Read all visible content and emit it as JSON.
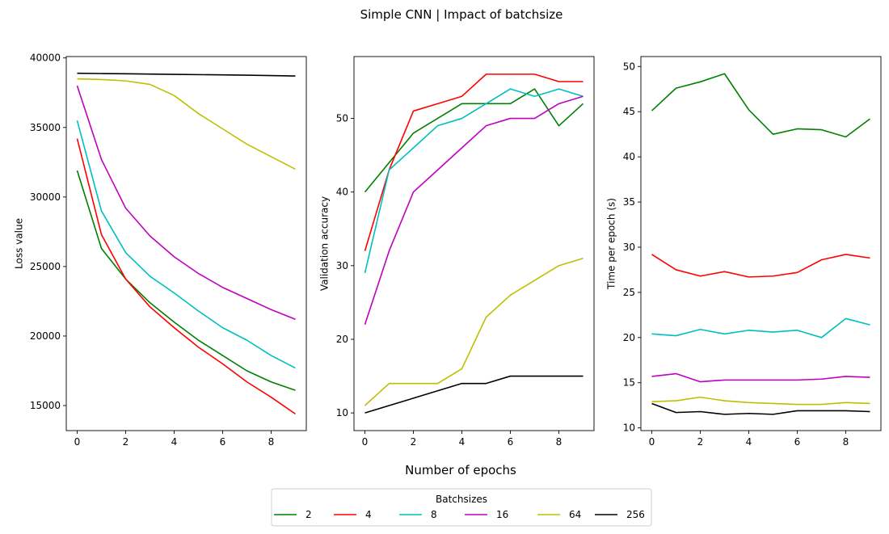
{
  "figure": {
    "suptitle": "Simple CNN | Impact of batchsize",
    "supxlabel": "Number of epochs"
  },
  "legend": {
    "title": "Batchsizes",
    "placement": "bottom-center",
    "columns": 6
  },
  "chart_data": [
    {
      "type": "line",
      "title": "",
      "xlabel": "",
      "ylabel": "Loss value",
      "xlim": [
        -0.45,
        9.45
      ],
      "ylim": [
        13200,
        40100
      ],
      "xticks": [
        0,
        2,
        4,
        6,
        8
      ],
      "yticks": [
        15000,
        20000,
        25000,
        30000,
        35000,
        40000
      ],
      "x": [
        0,
        1,
        2,
        3,
        4,
        5,
        6,
        7,
        8,
        9
      ],
      "series": [
        {
          "name": "2",
          "color": "#008000",
          "values": [
            31900,
            26300,
            24100,
            22400,
            21000,
            19700,
            18600,
            17500,
            16700,
            16100
          ]
        },
        {
          "name": "4",
          "color": "#ff0000",
          "values": [
            34200,
            27300,
            24100,
            22100,
            20600,
            19200,
            18000,
            16700,
            15600,
            14400
          ]
        },
        {
          "name": "8",
          "color": "#00bfbf",
          "values": [
            35500,
            29000,
            26000,
            24300,
            23100,
            21800,
            20600,
            19700,
            18600,
            17700
          ]
        },
        {
          "name": "16",
          "color": "#bf00bf",
          "values": [
            38000,
            32700,
            29200,
            27200,
            25700,
            24500,
            23500,
            22700,
            21900,
            21200
          ]
        },
        {
          "name": "64",
          "color": "#bfbf00",
          "values": [
            38500,
            38450,
            38350,
            38100,
            37300,
            36000,
            34900,
            33800,
            32900,
            32000
          ]
        },
        {
          "name": "256",
          "color": "#000000",
          "values": [
            38900,
            38880,
            38860,
            38840,
            38820,
            38800,
            38780,
            38760,
            38730,
            38700
          ]
        }
      ]
    },
    {
      "type": "line",
      "title": "",
      "xlabel": "",
      "ylabel": "Validation accuracy",
      "xlim": [
        -0.45,
        9.45
      ],
      "ylim": [
        7.6,
        58.4
      ],
      "xticks": [
        0,
        2,
        4,
        6,
        8
      ],
      "yticks": [
        10,
        20,
        30,
        40,
        50
      ],
      "x": [
        0,
        1,
        2,
        3,
        4,
        5,
        6,
        7,
        8,
        9
      ],
      "series": [
        {
          "name": "2",
          "color": "#008000",
          "values": [
            40,
            44,
            48,
            50,
            52,
            52,
            52,
            54,
            49,
            52
          ]
        },
        {
          "name": "4",
          "color": "#ff0000",
          "values": [
            32,
            43,
            51,
            52,
            53,
            56,
            56,
            56,
            55,
            55
          ]
        },
        {
          "name": "8",
          "color": "#00bfbf",
          "values": [
            29,
            43,
            46,
            49,
            50,
            52,
            54,
            53,
            54,
            53
          ]
        },
        {
          "name": "16",
          "color": "#bf00bf",
          "values": [
            22,
            32,
            40,
            43,
            46,
            49,
            50,
            50,
            52,
            53
          ]
        },
        {
          "name": "64",
          "color": "#bfbf00",
          "values": [
            11,
            14,
            14,
            14,
            16,
            23,
            26,
            28,
            30,
            31
          ]
        },
        {
          "name": "256",
          "color": "#000000",
          "values": [
            10,
            11,
            12,
            13,
            14,
            14,
            15,
            15,
            15,
            15
          ]
        }
      ]
    },
    {
      "type": "line",
      "title": "",
      "xlabel": "",
      "ylabel": "Time per epoch (s)",
      "xlim": [
        -0.45,
        9.45
      ],
      "ylim": [
        9.7,
        51.1
      ],
      "xticks": [
        0,
        2,
        4,
        6,
        8
      ],
      "yticks": [
        10,
        15,
        20,
        25,
        30,
        35,
        40,
        45,
        50
      ],
      "x": [
        0,
        1,
        2,
        3,
        4,
        5,
        6,
        7,
        8,
        9
      ],
      "series": [
        {
          "name": "2",
          "color": "#008000",
          "values": [
            45.1,
            47.6,
            48.3,
            49.2,
            45.2,
            42.5,
            43.1,
            43.0,
            42.2,
            44.2
          ]
        },
        {
          "name": "4",
          "color": "#ff0000",
          "values": [
            29.2,
            27.5,
            26.8,
            27.3,
            26.7,
            26.8,
            27.2,
            28.6,
            29.2,
            28.8
          ]
        },
        {
          "name": "8",
          "color": "#00bfbf",
          "values": [
            20.4,
            20.2,
            20.9,
            20.4,
            20.8,
            20.6,
            20.8,
            20.0,
            22.1,
            21.4
          ]
        },
        {
          "name": "16",
          "color": "#bf00bf",
          "values": [
            15.7,
            16.0,
            15.1,
            15.3,
            15.3,
            15.3,
            15.3,
            15.4,
            15.7,
            15.6
          ]
        },
        {
          "name": "64",
          "color": "#bfbf00",
          "values": [
            12.9,
            13.0,
            13.4,
            13.0,
            12.8,
            12.7,
            12.6,
            12.6,
            12.8,
            12.7
          ]
        },
        {
          "name": "256",
          "color": "#000000",
          "values": [
            12.7,
            11.7,
            11.8,
            11.5,
            11.6,
            11.5,
            11.9,
            11.9,
            11.9,
            11.8
          ]
        }
      ]
    }
  ]
}
